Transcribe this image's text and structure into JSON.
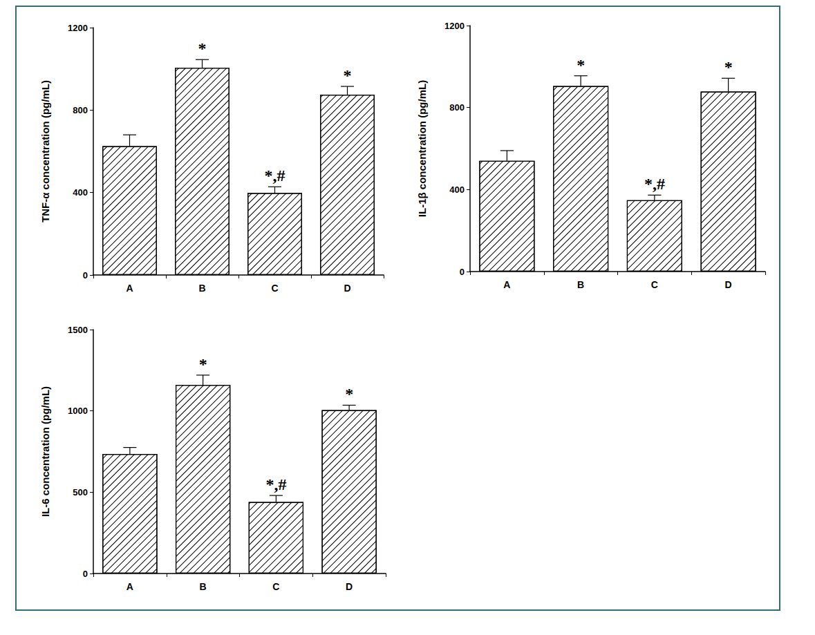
{
  "chart_data": [
    {
      "type": "bar",
      "y_label": "TNF-α concentration (pg/mL)",
      "categories": [
        "A",
        "B",
        "C",
        "D"
      ],
      "values": [
        625,
        1005,
        398,
        875
      ],
      "errors": [
        55,
        40,
        30,
        40
      ],
      "annotations": [
        null,
        "*",
        "*,#",
        "*"
      ],
      "color": "#000000",
      "ylim": [
        0,
        1200
      ],
      "yticks": [
        0,
        400,
        800,
        1200
      ],
      "grid": false
    },
    {
      "type": "bar",
      "y_label": "IL-1β concentration (pg/mL)",
      "categories": [
        "A",
        "B",
        "C",
        "D"
      ],
      "values": [
        540,
        905,
        348,
        878
      ],
      "errors": [
        50,
        50,
        25,
        65
      ],
      "annotations": [
        null,
        "*",
        "*,#",
        "*"
      ],
      "color": "#000000",
      "ylim": [
        0,
        1200
      ],
      "yticks": [
        0,
        400,
        800,
        1200
      ],
      "grid": false
    },
    {
      "type": "bar",
      "y_label": "IL-6 concentration (pg/mL)",
      "categories": [
        "A",
        "B",
        "C",
        "D"
      ],
      "values": [
        735,
        1160,
        440,
        1005
      ],
      "errors": [
        40,
        60,
        40,
        30
      ],
      "annotations": [
        null,
        "*",
        "*,#",
        "*"
      ],
      "color": "#000000",
      "ylim": [
        0,
        1500
      ],
      "yticks": [
        0,
        500,
        1000,
        1500
      ],
      "grid": false
    }
  ]
}
